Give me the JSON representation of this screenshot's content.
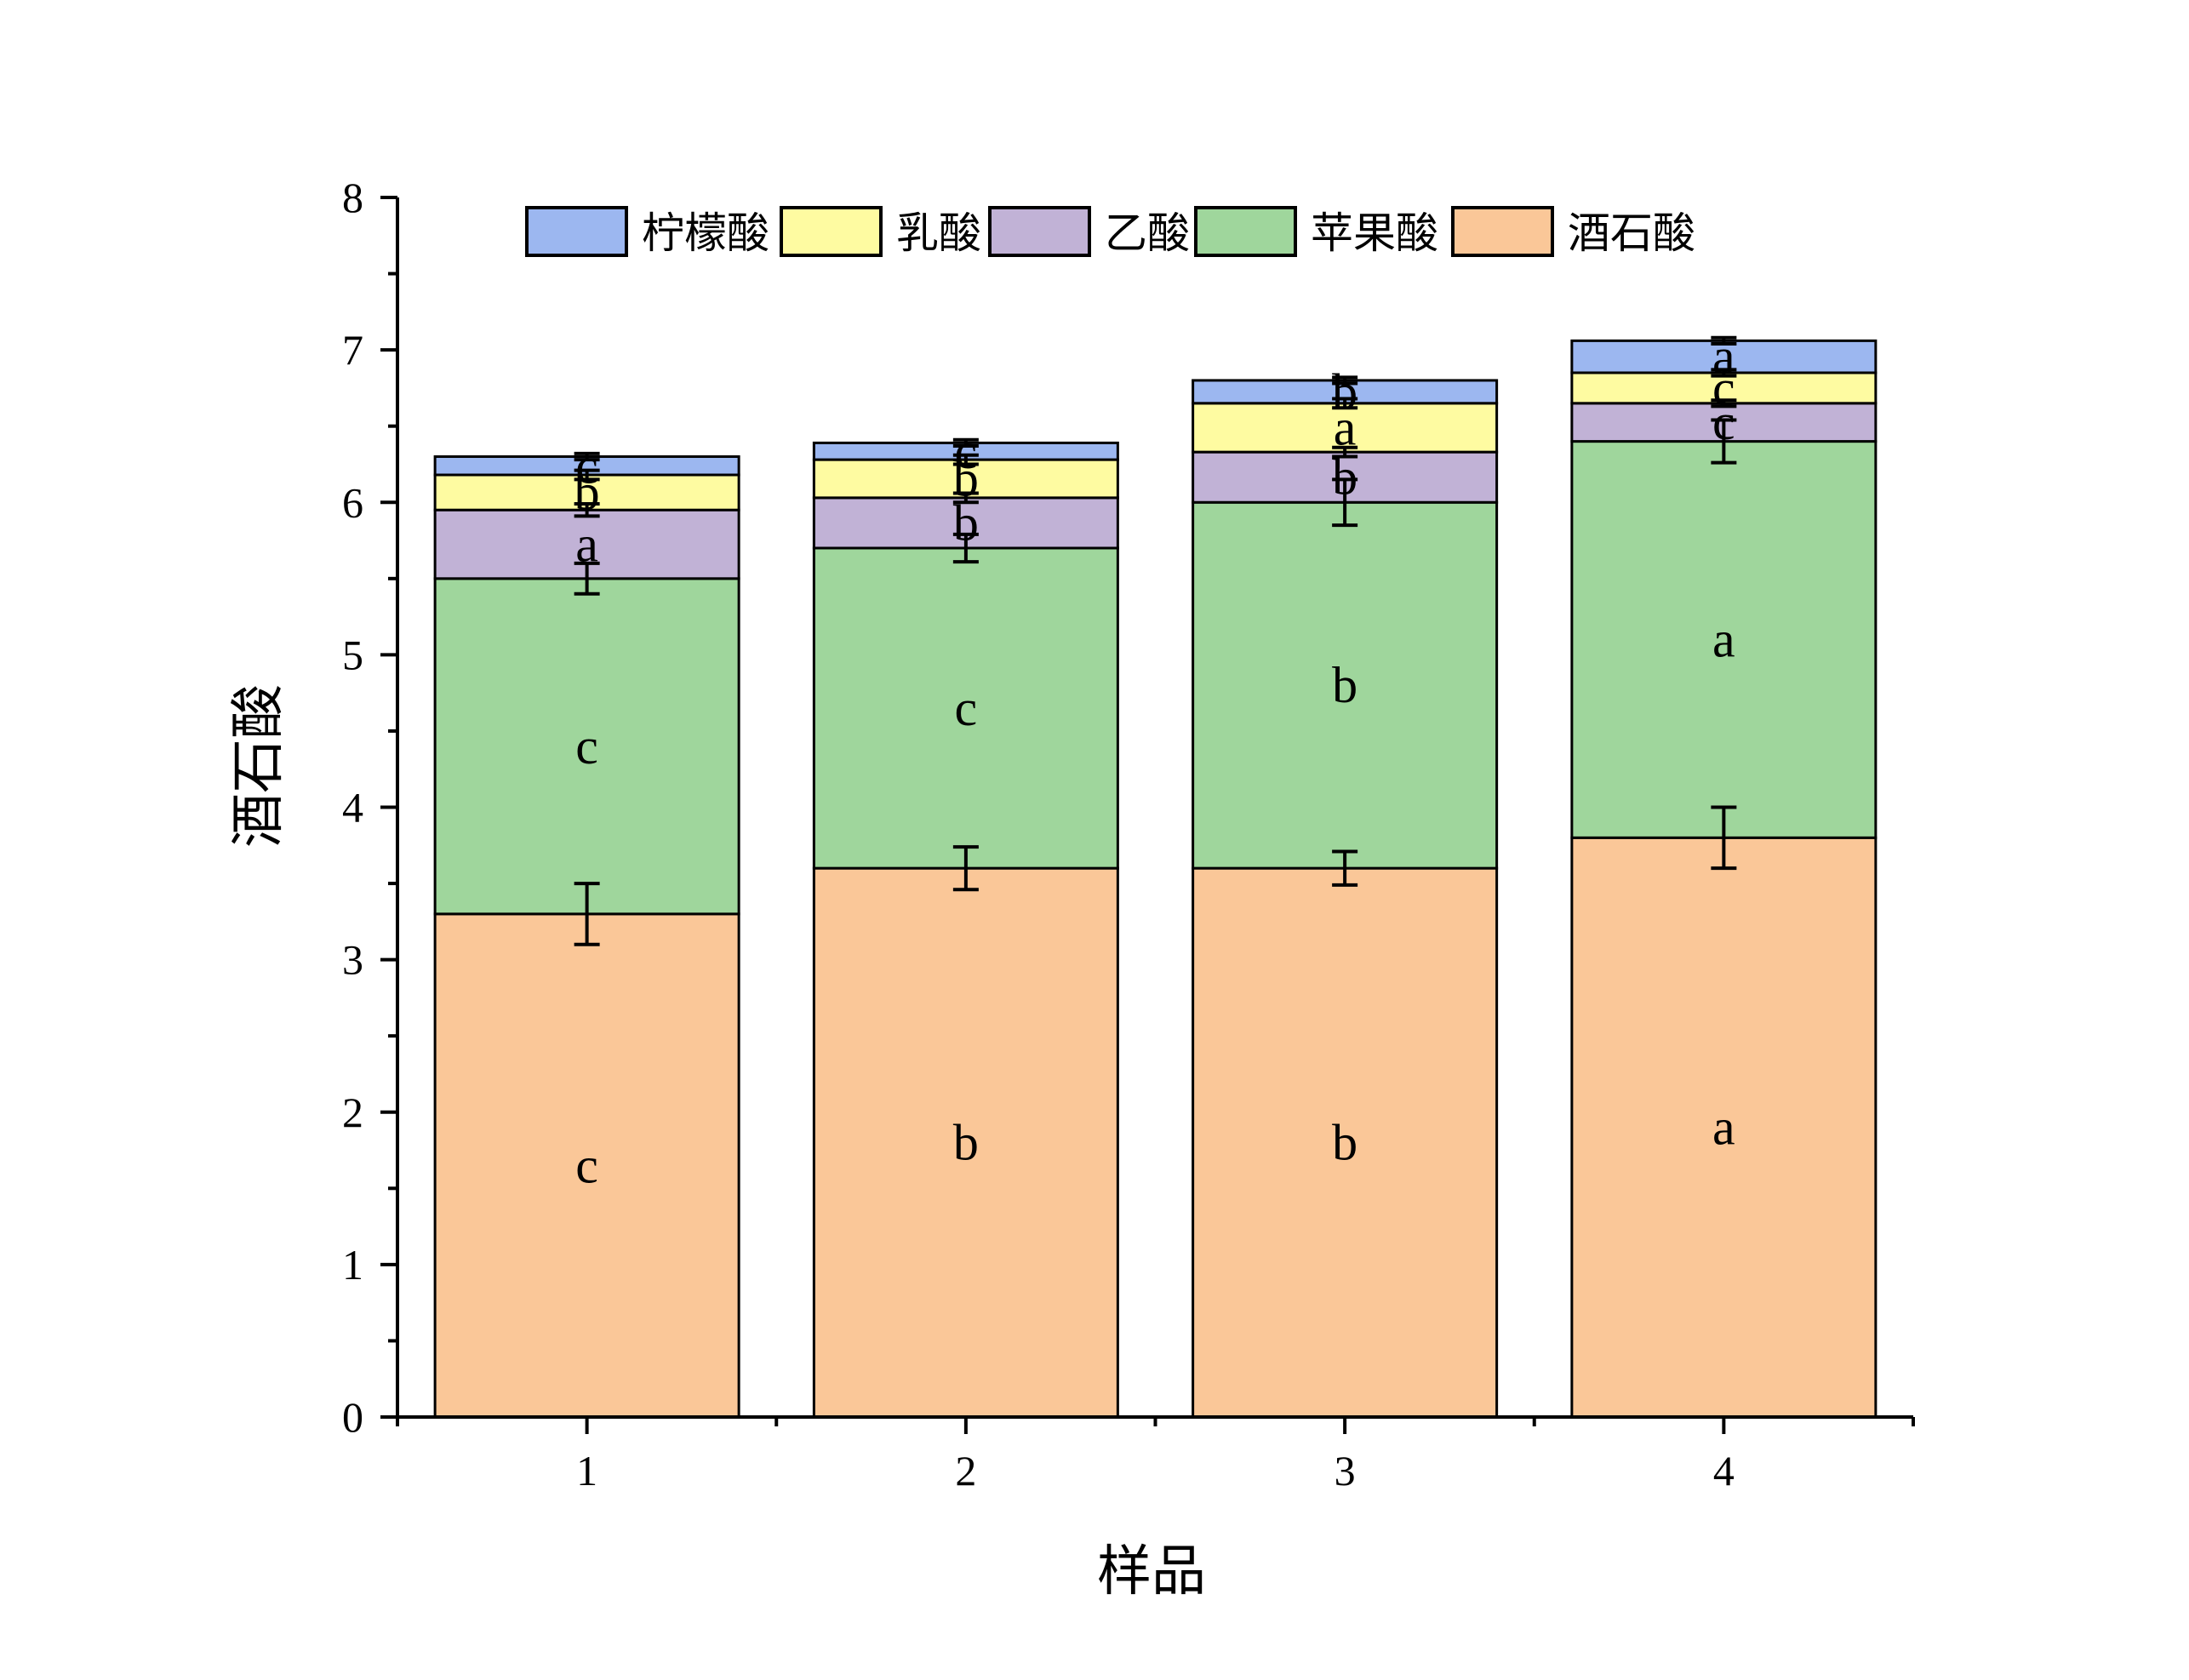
{
  "chart_data": {
    "type": "bar",
    "stacked": true,
    "title": "",
    "xlabel": "样品",
    "ylabel": "酒石酸",
    "ylim": [
      0,
      8
    ],
    "yticks": [
      0,
      1,
      2,
      3,
      4,
      5,
      6,
      7,
      8
    ],
    "categories": [
      "1",
      "2",
      "3",
      "4"
    ],
    "legend_position": "top",
    "legend_order": [
      "柠檬酸",
      "乳酸",
      "乙酸",
      "苹果酸",
      "酒石酸"
    ],
    "series": [
      {
        "name": "酒石酸",
        "color": "#FAC798",
        "values": [
          3.3,
          3.6,
          3.6,
          3.8
        ],
        "errors": [
          0.2,
          0.14,
          0.11,
          0.2
        ],
        "labels": [
          "c",
          "b",
          "b",
          "a"
        ]
      },
      {
        "name": "苹果酸",
        "color": "#9FD69C",
        "values": [
          2.2,
          2.1,
          2.4,
          2.6
        ],
        "errors": [
          0.1,
          0.09,
          0.15,
          0.14
        ],
        "labels": [
          "c",
          "c",
          "b",
          "a"
        ]
      },
      {
        "name": "乙酸",
        "color": "#C1B2D6",
        "values": [
          0.45,
          0.33,
          0.33,
          0.25
        ],
        "errors": [
          0.04,
          0.03,
          0.03,
          0.02
        ],
        "labels": [
          "a",
          "b",
          "b",
          "c"
        ]
      },
      {
        "name": "乳酸",
        "color": "#FEFBA1",
        "values": [
          0.23,
          0.25,
          0.32,
          0.2
        ],
        "errors": [
          0.03,
          0.03,
          0.03,
          0.02
        ],
        "labels": [
          "b",
          "b",
          "a",
          "c"
        ]
      },
      {
        "name": "柠檬酸",
        "color": "#9CB7F0",
        "values": [
          0.12,
          0.11,
          0.15,
          0.21
        ],
        "errors": [
          0.02,
          0.02,
          0.02,
          0.02
        ],
        "labels": [
          "c",
          "c",
          "b",
          "a"
        ]
      }
    ]
  }
}
